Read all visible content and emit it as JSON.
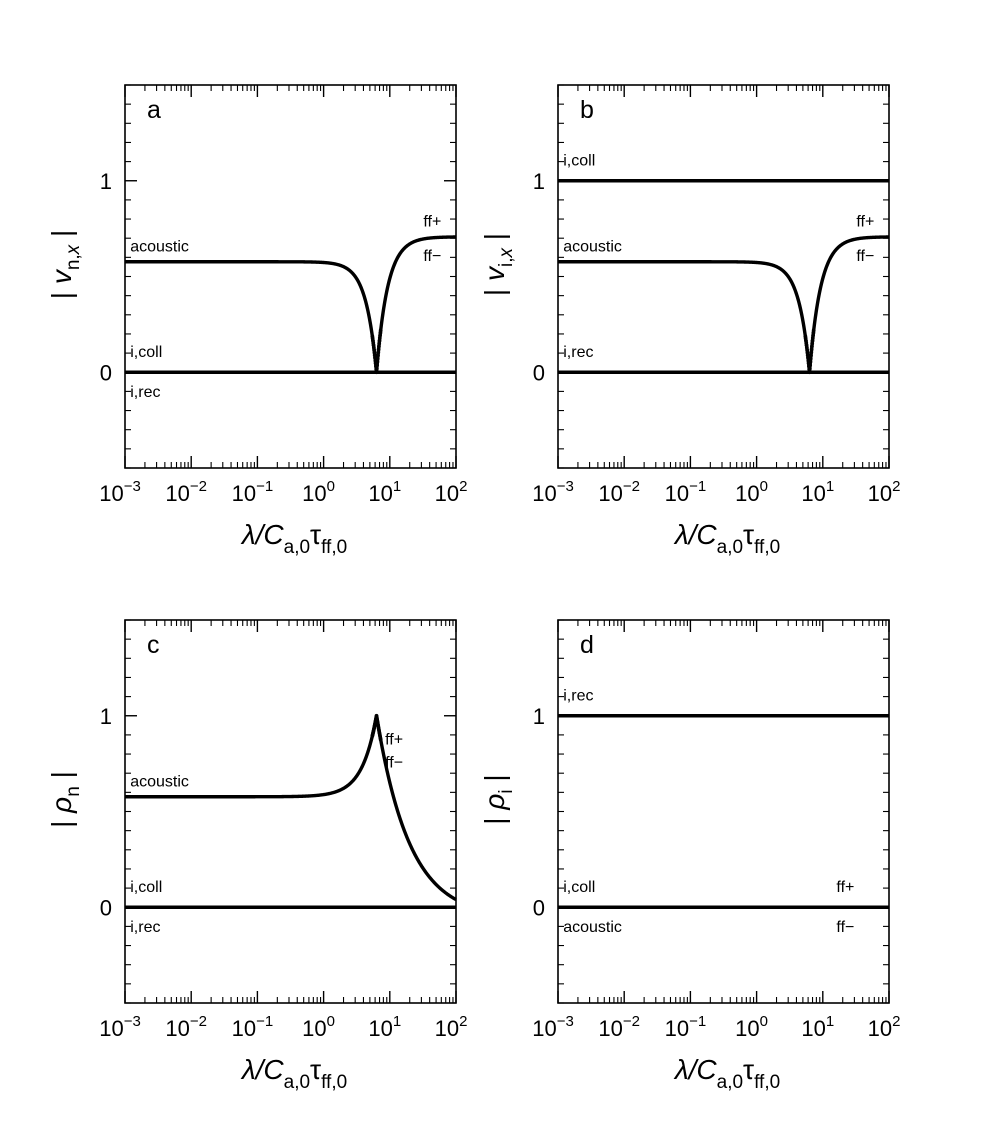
{
  "figure": {
    "x_axis_label": {
      "main": "λ/",
      "italic": "C",
      "sub1": "a,0",
      "tau": "τ",
      "sub2": "ff,0"
    }
  },
  "chart_data": [
    {
      "type": "line",
      "panel_letter": "a",
      "ylabel": {
        "left_bar": "|",
        "italic": "v",
        "sub": "n,",
        "sub_italic": "x",
        "right_bar": "|"
      },
      "x_scale": "log",
      "xlim": [
        0.001,
        100
      ],
      "ylim": [
        -0.5,
        1.5
      ],
      "x_ticks": [
        "10",
        "10",
        "10",
        "10",
        "10",
        "10"
      ],
      "x_tick_exponents": [
        "−3",
        "−2",
        "−1",
        "0",
        "1",
        "2"
      ],
      "x_tick_values": [
        0.001,
        0.01,
        0.1,
        1,
        10,
        100
      ],
      "y_ticks": [
        "0",
        "1"
      ],
      "y_tick_values": [
        0,
        1
      ],
      "series": [
        {
          "kind": "acoustic-dip",
          "plateau_low": 0.577,
          "plateau_high": 0.707,
          "dip_at": 6.3
        },
        {
          "kind": "constant",
          "y": 0
        }
      ],
      "annotations": [
        {
          "text": "acoustic",
          "x": 0.0012,
          "y": 0.63,
          "align": "start"
        },
        {
          "text": "ff+",
          "x": 60,
          "y": 0.76,
          "align": "end"
        },
        {
          "text": "ff−",
          "x": 60,
          "y": 0.58,
          "align": "end"
        },
        {
          "text": "i,coll",
          "x": 0.0012,
          "y": 0.08,
          "align": "start"
        },
        {
          "text": "i,rec",
          "x": 0.0012,
          "y": -0.13,
          "align": "start"
        }
      ]
    },
    {
      "type": "line",
      "panel_letter": "b",
      "ylabel": {
        "left_bar": "|",
        "italic": "v",
        "sub": "i,",
        "sub_italic": "x",
        "right_bar": "|"
      },
      "x_scale": "log",
      "xlim": [
        0.001,
        100
      ],
      "ylim": [
        -0.5,
        1.5
      ],
      "x_ticks": [
        "10",
        "10",
        "10",
        "10",
        "10",
        "10"
      ],
      "x_tick_exponents": [
        "−3",
        "−2",
        "−1",
        "0",
        "1",
        "2"
      ],
      "x_tick_values": [
        0.001,
        0.01,
        0.1,
        1,
        10,
        100
      ],
      "y_ticks": [
        "0",
        "1"
      ],
      "y_tick_values": [
        0,
        1
      ],
      "series": [
        {
          "kind": "constant",
          "y": 1
        },
        {
          "kind": "acoustic-dip",
          "plateau_low": 0.577,
          "plateau_high": 0.707,
          "dip_at": 6.3
        },
        {
          "kind": "constant",
          "y": 0
        }
      ],
      "annotations": [
        {
          "text": "i,coll",
          "x": 0.0012,
          "y": 1.08,
          "align": "start"
        },
        {
          "text": "acoustic",
          "x": 0.0012,
          "y": 0.63,
          "align": "start"
        },
        {
          "text": "ff+",
          "x": 60,
          "y": 0.76,
          "align": "end"
        },
        {
          "text": "ff−",
          "x": 60,
          "y": 0.58,
          "align": "end"
        },
        {
          "text": "i,rec",
          "x": 0.0012,
          "y": 0.08,
          "align": "start"
        }
      ]
    },
    {
      "type": "line",
      "panel_letter": "c",
      "ylabel": {
        "left_bar": "|",
        "italic": "ρ",
        "sub": "n",
        "sub_italic": "",
        "right_bar": "|"
      },
      "x_scale": "log",
      "xlim": [
        0.001,
        100
      ],
      "ylim": [
        -0.5,
        1.5
      ],
      "x_ticks": [
        "10",
        "10",
        "10",
        "10",
        "10",
        "10"
      ],
      "x_tick_exponents": [
        "−3",
        "−2",
        "−1",
        "0",
        "1",
        "2"
      ],
      "x_tick_values": [
        0.001,
        0.01,
        0.1,
        1,
        10,
        100
      ],
      "y_ticks": [
        "0",
        "1"
      ],
      "y_tick_values": [
        0,
        1
      ],
      "series": [
        {
          "kind": "density-peak",
          "plateau_low": 0.577,
          "peak": 1.0,
          "peak_at": 6.3,
          "tail_end": 0.04
        },
        {
          "kind": "constant",
          "y": 0
        }
      ],
      "annotations": [
        {
          "text": "acoustic",
          "x": 0.0012,
          "y": 0.63,
          "align": "start"
        },
        {
          "text": "ff+",
          "x": 8.5,
          "y": 0.85,
          "align": "start"
        },
        {
          "text": "ff−",
          "x": 8.5,
          "y": 0.73,
          "align": "start"
        },
        {
          "text": "i,coll",
          "x": 0.0012,
          "y": 0.08,
          "align": "start"
        },
        {
          "text": "i,rec",
          "x": 0.0012,
          "y": -0.13,
          "align": "start"
        }
      ]
    },
    {
      "type": "line",
      "panel_letter": "d",
      "ylabel": {
        "left_bar": "|",
        "italic": "ρ",
        "sub": "i",
        "sub_italic": "",
        "right_bar": "|"
      },
      "x_scale": "log",
      "xlim": [
        0.001,
        100
      ],
      "ylim": [
        -0.5,
        1.5
      ],
      "x_ticks": [
        "10",
        "10",
        "10",
        "10",
        "10",
        "10"
      ],
      "x_tick_exponents": [
        "−3",
        "−2",
        "−1",
        "0",
        "1",
        "2"
      ],
      "x_tick_values": [
        0.001,
        0.01,
        0.1,
        1,
        10,
        100
      ],
      "y_ticks": [
        "0",
        "1"
      ],
      "y_tick_values": [
        0,
        1
      ],
      "series": [
        {
          "kind": "constant",
          "y": 1
        },
        {
          "kind": "constant",
          "y": 0
        }
      ],
      "annotations": [
        {
          "text": "i,rec",
          "x": 0.0012,
          "y": 1.08,
          "align": "start"
        },
        {
          "text": "i,coll",
          "x": 0.0012,
          "y": 0.08,
          "align": "start"
        },
        {
          "text": "ff+",
          "x": 30,
          "y": 0.08,
          "align": "end"
        },
        {
          "text": "acoustic",
          "x": 0.0012,
          "y": -0.13,
          "align": "start"
        },
        {
          "text": "ff−",
          "x": 30,
          "y": -0.13,
          "align": "end"
        }
      ]
    }
  ]
}
